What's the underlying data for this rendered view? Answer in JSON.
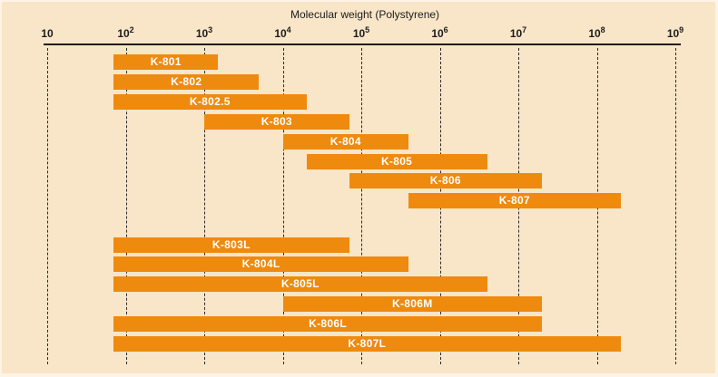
{
  "page": {
    "background": "#f9e5c8",
    "edge_color": "#fdf4e6"
  },
  "colors": {
    "bar_orange": "#ee8a0e",
    "bar_label_text": "#ffffff",
    "axis_line": "#1c1c1c",
    "axis_text": "#1c1c1c",
    "gridline": "#2b2b2b"
  },
  "chart_data": {
    "type": "bar",
    "subtype": "horizontal-range-bars",
    "title": "Molecular weight (Polystyrene)",
    "xlabel": "Molecular weight (Polystyrene)",
    "ylabel": "",
    "x_axis": {
      "scale": "log10",
      "min": 10,
      "max": 1000000000,
      "tick_base": "10",
      "tick_exponents": [
        1,
        2,
        3,
        4,
        5,
        6,
        7,
        8,
        9
      ],
      "tick_labels": [
        "10",
        "10^2",
        "10^3",
        "10^4",
        "10^5",
        "10^6",
        "10^7",
        "10^8",
        "10^9"
      ]
    },
    "grid": "dashed-vertical-per-decade",
    "legend_position": "none",
    "groups": [
      {
        "name": "analytical-columns",
        "bars": [
          {
            "label": "K-801",
            "range": [
              70,
              1500
            ]
          },
          {
            "label": "K-802",
            "range": [
              70,
              5000
            ]
          },
          {
            "label": "K-802.5",
            "range": [
              70,
              20000
            ]
          },
          {
            "label": "K-803",
            "range": [
              1000,
              70000
            ]
          },
          {
            "label": "K-804",
            "range": [
              10000,
              400000
            ]
          },
          {
            "label": "K-805",
            "range": [
              20000,
              4000000
            ]
          },
          {
            "label": "K-806",
            "range": [
              70000,
              20000000
            ]
          },
          {
            "label": "K-807",
            "range": [
              400000,
              200000000
            ]
          }
        ]
      },
      {
        "name": "linear-mixed-columns",
        "bars": [
          {
            "label": "K-803L",
            "range": [
              70,
              70000
            ]
          },
          {
            "label": "K-804L",
            "range": [
              70,
              400000
            ]
          },
          {
            "label": "K-805L",
            "range": [
              70,
              4000000
            ]
          },
          {
            "label": "K-806M",
            "range": [
              10000,
              20000000
            ]
          },
          {
            "label": "K-806L",
            "range": [
              70,
              20000000
            ]
          },
          {
            "label": "K-807L",
            "range": [
              70,
              200000000
            ]
          }
        ]
      }
    ]
  }
}
